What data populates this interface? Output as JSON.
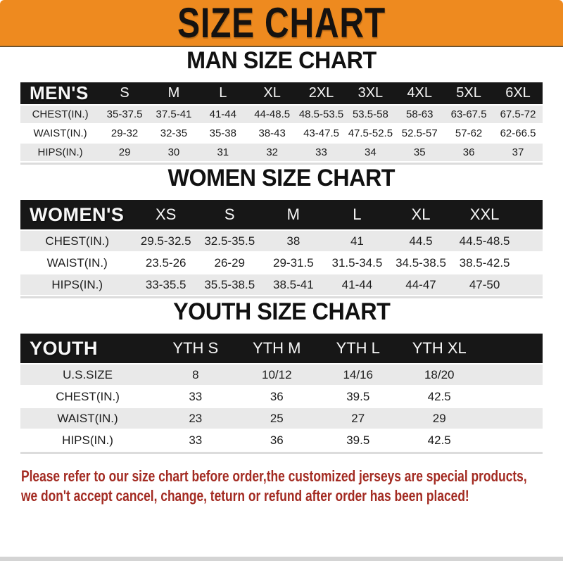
{
  "banner": {
    "title": "SIZE CHART"
  },
  "colors": {
    "banner_bg": "#ee8a1f",
    "band_bg": "#171717",
    "row_alt": "#e9e9e9",
    "footer_text": "#a32b22"
  },
  "chart_data": [
    {
      "type": "table",
      "title": "MAN SIZE CHART",
      "corner_label": "MEN'S",
      "columns": [
        "S",
        "M",
        "L",
        "XL",
        "2XL",
        "3XL",
        "4XL",
        "5XL",
        "6XL"
      ],
      "rows": [
        {
          "label": "CHEST(IN.)",
          "values": [
            "35-37.5",
            "37.5-41",
            "41-44",
            "44-48.5",
            "48.5-53.5",
            "53.5-58",
            "58-63",
            "63-67.5",
            "67.5-72"
          ]
        },
        {
          "label": "WAIST(IN.)",
          "values": [
            "29-32",
            "32-35",
            "35-38",
            "38-43",
            "43-47.5",
            "47.5-52.5",
            "52.5-57",
            "57-62",
            "62-66.5"
          ]
        },
        {
          "label": "HIPS(IN.)",
          "values": [
            "29",
            "30",
            "31",
            "32",
            "33",
            "34",
            "35",
            "36",
            "37"
          ]
        }
      ]
    },
    {
      "type": "table",
      "title": "WOMEN SIZE CHART",
      "corner_label": "WOMEN'S",
      "columns": [
        "XS",
        "S",
        "M",
        "L",
        "XL",
        "XXL"
      ],
      "rows": [
        {
          "label": "CHEST(IN.)",
          "values": [
            "29.5-32.5",
            "32.5-35.5",
            "38",
            "41",
            "44.5",
            "44.5-48.5"
          ]
        },
        {
          "label": "WAIST(IN.)",
          "values": [
            "23.5-26",
            "26-29",
            "29-31.5",
            "31.5-34.5",
            "34.5-38.5",
            "38.5-42.5"
          ]
        },
        {
          "label": "HIPS(IN.)",
          "values": [
            "33-35.5",
            "35.5-38.5",
            "38.5-41",
            "41-44",
            "44-47",
            "47-50"
          ]
        }
      ]
    },
    {
      "type": "table",
      "title": "YOUTH SIZE CHART",
      "corner_label": "YOUTH",
      "columns": [
        "YTH S",
        "YTH M",
        "YTH L",
        "YTH XL"
      ],
      "rows": [
        {
          "label": "U.S.SIZE",
          "values": [
            "8",
            "10/12",
            "14/16",
            "18/20"
          ]
        },
        {
          "label": "CHEST(IN.)",
          "values": [
            "33",
            "36",
            "39.5",
            "42.5"
          ]
        },
        {
          "label": "WAIST(IN.)",
          "values": [
            "23",
            "25",
            "27",
            "29"
          ]
        },
        {
          "label": "HIPS(IN.)",
          "values": [
            "33",
            "36",
            "39.5",
            "42.5"
          ]
        }
      ]
    }
  ],
  "footer": {
    "line1": "Please refer to our size chart before order,the customized jerseys are special products,",
    "line2": "we don't accept cancel, change, teturn or refund after order has been placed!"
  }
}
